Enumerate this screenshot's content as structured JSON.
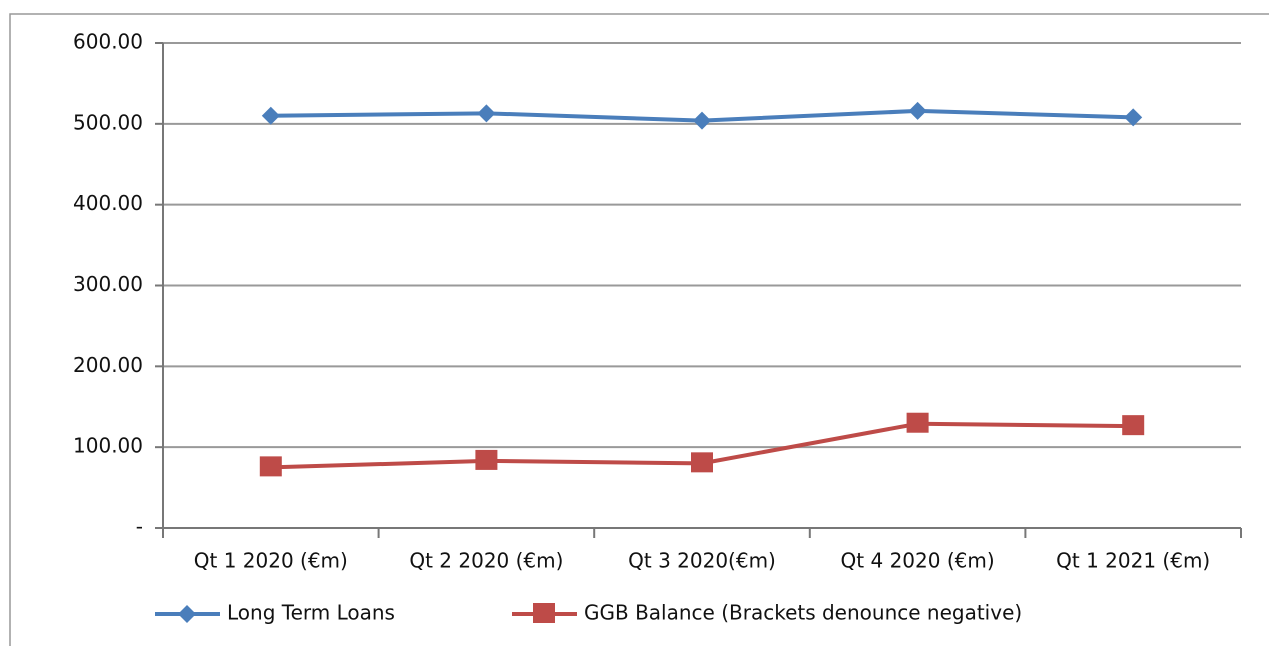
{
  "chart_data": {
    "type": "line",
    "categories": [
      "Qt 1 2020 (€m)",
      "Qt 2 2020 (€m)",
      "Qt 3 2020(€m)",
      "Qt 4 2020 (€m)",
      "Qt 1 2021 (€m)"
    ],
    "series": [
      {
        "name": "Long Term Loans",
        "color": "#4a7ebb",
        "marker": "diamond",
        "values": [
          510,
          513,
          504,
          516,
          508
        ]
      },
      {
        "name": "GGB Balance (Brackets denounce negative)",
        "color": "#be4b48",
        "marker": "square",
        "values": [
          75,
          83,
          80,
          129,
          126
        ]
      }
    ],
    "ylim": [
      0,
      600
    ],
    "yticks": [
      {
        "value": 0,
        "label": "-"
      },
      {
        "value": 100,
        "label": "100.00"
      },
      {
        "value": 200,
        "label": "200.00"
      },
      {
        "value": 300,
        "label": "300.00"
      },
      {
        "value": 400,
        "label": "400.00"
      },
      {
        "value": 500,
        "label": "500.00"
      },
      {
        "value": 600,
        "label": "600.00"
      }
    ],
    "grid": true,
    "legend": "bottom"
  }
}
